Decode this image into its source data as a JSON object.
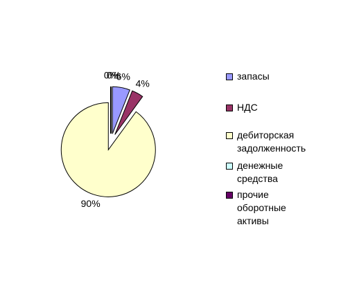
{
  "chart_data": {
    "type": "pie",
    "categories": [
      "запасы",
      "НДС",
      "дебиторская задолженность",
      "денежные средства",
      "прочие оборотные активы"
    ],
    "values": [
      6,
      4,
      90,
      0,
      0
    ],
    "value_labels": [
      "6%",
      "4%",
      "90%",
      "0%",
      "0%"
    ],
    "colors": [
      "#9999ff",
      "#993366",
      "#ffffcc",
      "#ccffff",
      "#660066"
    ],
    "legend": "right"
  }
}
